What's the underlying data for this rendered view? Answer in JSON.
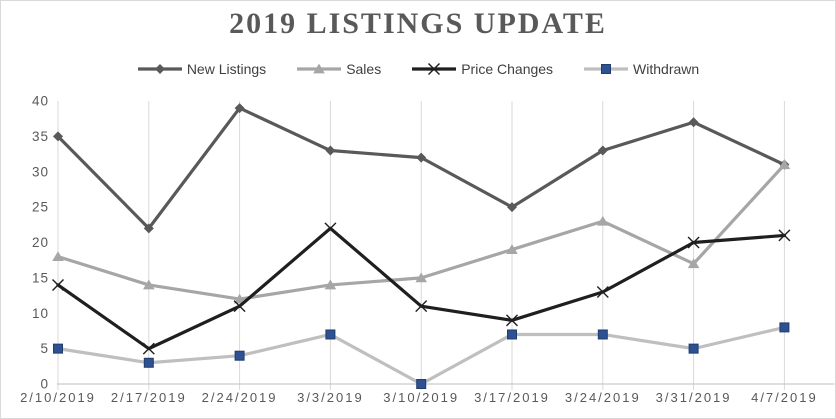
{
  "chart_data": {
    "type": "line",
    "title": "2019 LISTINGS UPDATE",
    "xlabel": "",
    "ylabel": "",
    "categories": [
      "2/10/2019",
      "2/17/2019",
      "2/24/2019",
      "3/3/2019",
      "3/10/2019",
      "3/17/2019",
      "3/24/2019",
      "3/31/2019",
      "4/7/2019"
    ],
    "series": [
      {
        "name": "New Listings",
        "values": [
          35,
          22,
          39,
          33,
          32,
          25,
          33,
          37,
          31
        ],
        "color": "#595959",
        "marker": "diamond",
        "marker_color": "#595959"
      },
      {
        "name": "Sales",
        "values": [
          18,
          14,
          12,
          14,
          15,
          19,
          23,
          17,
          31
        ],
        "color": "#a6a6a6",
        "marker": "triangle",
        "marker_color": "#a6a6a6"
      },
      {
        "name": "Price Changes",
        "values": [
          14,
          5,
          11,
          22,
          11,
          9,
          13,
          20,
          21
        ],
        "color": "#1f1f1f",
        "marker": "x",
        "marker_color": "#1f1f1f"
      },
      {
        "name": "Withdrawn",
        "values": [
          5,
          3,
          4,
          7,
          0,
          7,
          7,
          5,
          8
        ],
        "color": "#bfbfbf",
        "marker": "square",
        "marker_color": "#2e5191",
        "marker_border": "#223c6d"
      }
    ],
    "ylim": [
      0,
      40
    ],
    "ytick_step": 5,
    "yticks": [
      0,
      5,
      10,
      15,
      20,
      25,
      30,
      35,
      40
    ],
    "grid": "vertical-only",
    "legend_position": "top",
    "colors": {
      "title_text": "#595959",
      "axis_text": "#595959",
      "legend_text": "#404040",
      "gridline": "#d9d9d9",
      "axis_line": "#bfbfbf",
      "background": "#ffffff",
      "frame_border": "#d9d9d9"
    }
  }
}
